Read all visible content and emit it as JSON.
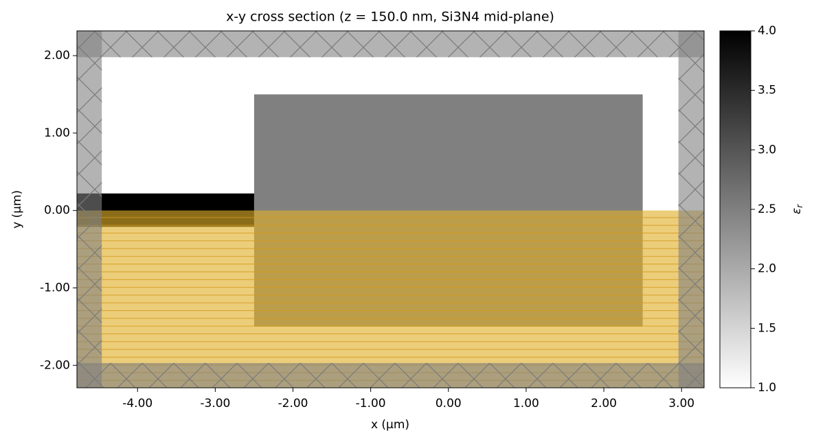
{
  "chart_data": {
    "type": "structure",
    "title": "x-y cross section (z = 150.0 nm, Si3N4 mid-plane)",
    "xlabel": "x (µm)",
    "ylabel": "y (µm)",
    "xlim": [
      -4.78,
      3.29
    ],
    "ylim": [
      -2.29,
      2.32
    ],
    "xticks": [
      {
        "value": -4,
        "label": "-4.00"
      },
      {
        "value": -3,
        "label": "-3.00"
      },
      {
        "value": -2,
        "label": "-2.00"
      },
      {
        "value": -1,
        "label": "-1.00"
      },
      {
        "value": 0,
        "label": "0.00"
      },
      {
        "value": 1,
        "label": "1.00"
      },
      {
        "value": 2,
        "label": "2.00"
      },
      {
        "value": 3,
        "label": "3.00"
      }
    ],
    "yticks": [
      {
        "value": -2,
        "label": "-2.00"
      },
      {
        "value": -1,
        "label": "-1.00"
      },
      {
        "value": 0,
        "label": "0.00"
      },
      {
        "value": 1,
        "label": "1.00"
      },
      {
        "value": 2,
        "label": "2.00"
      }
    ],
    "background_permittivity": 1,
    "structures": [
      {
        "permittivity": 4,
        "x": [
          -4.78,
          -2.5
        ],
        "y": [
          -0.21,
          0.22
        ]
      },
      {
        "permittivity": 2.5,
        "x": [
          -2.5,
          2.5
        ],
        "y": [
          -1.5,
          1.5
        ]
      }
    ],
    "overlay": {
      "color": "#e1af28",
      "x": [
        -4.78,
        3.29
      ],
      "y": [
        -2.29,
        0
      ]
    },
    "pml": [
      {
        "x": [
          -4.78,
          -4.46
        ],
        "y": [
          -2.29,
          2.32
        ]
      },
      {
        "x": [
          2.96,
          3.29
        ],
        "y": [
          -2.29,
          2.32
        ]
      },
      {
        "x": [
          -4.78,
          3.29
        ],
        "y": [
          1.98,
          2.32
        ]
      },
      {
        "x": [
          -4.78,
          3.29
        ],
        "y": [
          -2.29,
          -1.97
        ]
      }
    ],
    "colorbar": {
      "label": {
        "symbol": "ε",
        "subscript": "r"
      },
      "clim": [
        1,
        4
      ],
      "ticks": [
        {
          "value": 1,
          "label": "1.0"
        },
        {
          "value": 1.5,
          "label": "1.5"
        },
        {
          "value": 2,
          "label": "2.0"
        },
        {
          "value": 2.5,
          "label": "2.5"
        },
        {
          "value": 3,
          "label": "3.0"
        },
        {
          "value": 3.5,
          "label": "3.5"
        },
        {
          "value": 4,
          "label": "4.0"
        }
      ]
    }
  }
}
